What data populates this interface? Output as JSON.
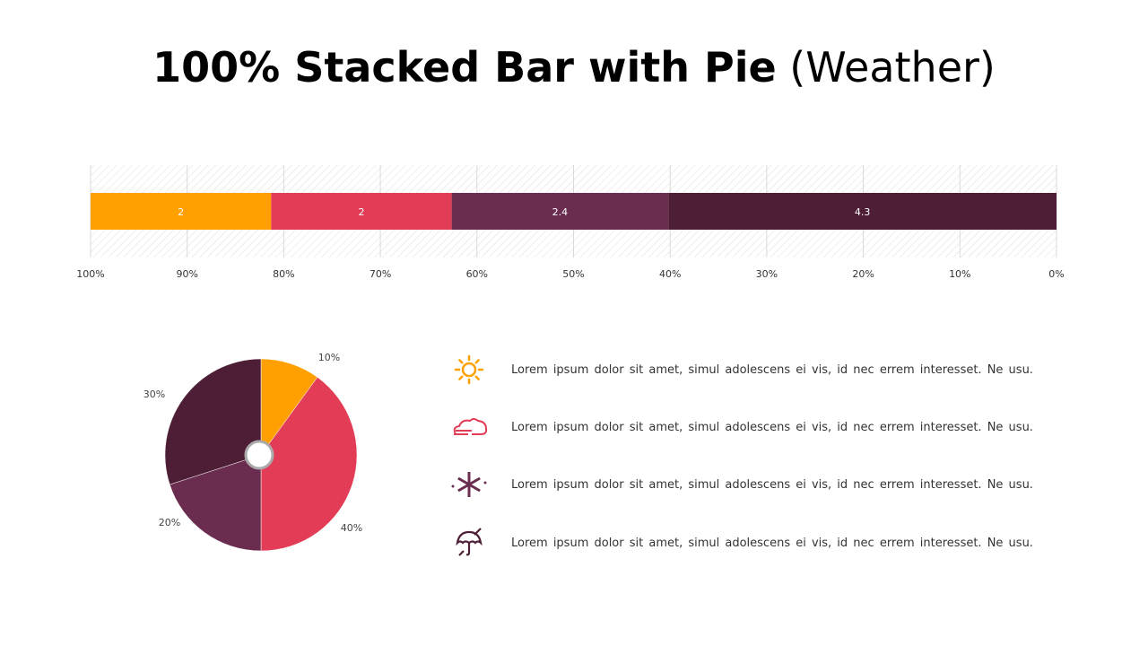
{
  "title": {
    "bold": "100% Stacked Bar with Pie",
    "normal": "(Weather)"
  },
  "colors": {
    "sun": "#FFA000",
    "cloud": "#E33C56",
    "snow": "#6A2C4F",
    "rain": "#4E1E36"
  },
  "chart_data": [
    {
      "type": "bar",
      "stacked": "100%",
      "orientation": "horizontal",
      "x_reversed": true,
      "series": [
        {
          "values": [
            2
          ],
          "color": "#FFA000"
        },
        {
          "values": [
            2
          ],
          "color": "#E33C56"
        },
        {
          "values": [
            2.4
          ],
          "color": "#6A2C4F"
        },
        {
          "values": [
            4.3
          ],
          "color": "#4E1E36"
        }
      ],
      "data_labels": [
        "2",
        "2",
        "2.4",
        "4.3"
      ],
      "xlim": [
        0,
        100
      ],
      "ticks": [
        "100%",
        "90%",
        "80%",
        "70%",
        "60%",
        "50%",
        "40%",
        "30%",
        "20%",
        "10%",
        "0%"
      ],
      "grid": true
    },
    {
      "type": "pie",
      "donut_hole": true,
      "slices": [
        {
          "value": 10,
          "label": "10%",
          "color": "#FFA000"
        },
        {
          "value": 40,
          "label": "40%",
          "color": "#E33C56"
        },
        {
          "value": 20,
          "label": "20%",
          "color": "#6A2C4F"
        },
        {
          "value": 30,
          "label": "30%",
          "color": "#4E1E36"
        }
      ]
    }
  ],
  "legend": [
    {
      "icon": "sun-icon",
      "text": "Lorem  ipsum dolor  sit amet,  simul adolescens ei vis, id nec errem  interesset. Ne usu."
    },
    {
      "icon": "cloud-fog-icon",
      "text": "Lorem  ipsum dolor  sit amet,  simul adolescens ei vis, id nec errem  interesset. Ne usu."
    },
    {
      "icon": "snowflake-icon",
      "text": "Lorem  ipsum dolor  sit amet,  simul adolescens ei vis, id nec errem  interesset. Ne usu."
    },
    {
      "icon": "umbrella-icon",
      "text": "Lorem  ipsum dolor  sit amet,  simul adolescens ei vis, id nec errem  interesset. Ne usu."
    }
  ]
}
